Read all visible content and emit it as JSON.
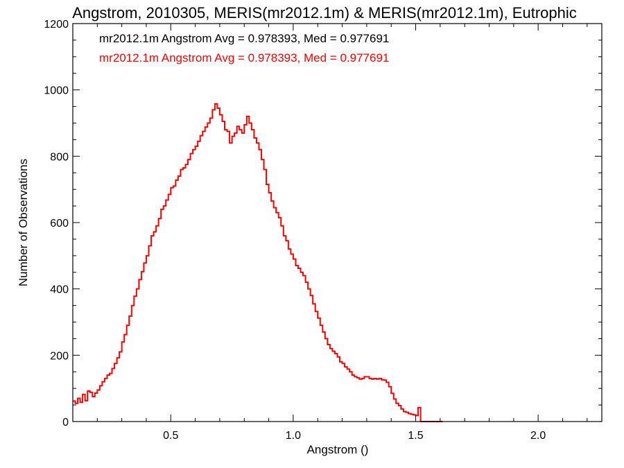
{
  "chart_data": {
    "type": "step",
    "title": "Angstrom, 2010305, MERIS(mr2012.1m) & MERIS(mr2012.1m), Eutrophic",
    "xlabel": "Angstrom ()",
    "ylabel": "Number of Observations",
    "xlim": [
      0.1,
      2.26
    ],
    "ylim": [
      0,
      1200
    ],
    "x_ticks": [
      {
        "value": 0.5,
        "label": "0.5"
      },
      {
        "value": 1.0,
        "label": "1.0"
      },
      {
        "value": 1.5,
        "label": "1.5"
      },
      {
        "value": 2.0,
        "label": "2.0"
      }
    ],
    "y_ticks": [
      {
        "value": 0,
        "label": "0"
      },
      {
        "value": 200,
        "label": "200"
      },
      {
        "value": 400,
        "label": "400"
      },
      {
        "value": 600,
        "label": "600"
      },
      {
        "value": 800,
        "label": "800"
      },
      {
        "value": 1000,
        "label": "1000"
      },
      {
        "value": 1200,
        "label": "1200"
      }
    ],
    "x_minor_step": 0.1,
    "y_minor_step": 50,
    "grid": false,
    "legend": {
      "placement": "top-left",
      "entries": [
        {
          "text": "mr2012.1m Angstrom Avg = 0.978393, Med = 0.977691",
          "color": "#000000"
        },
        {
          "text": "mr2012.1m Angstrom Avg = 0.978393, Med = 0.977691",
          "color": "#ff0000"
        }
      ]
    },
    "series": [
      {
        "color": "#ff0000",
        "bin_width": 0.01,
        "x_start": 0.1,
        "values": [
          62,
          55,
          70,
          58,
          82,
          63,
          92,
          88,
          75,
          86,
          95,
          108,
          120,
          130,
          140,
          145,
          160,
          175,
          192,
          210,
          240,
          262,
          290,
          318,
          350,
          378,
          400,
          428,
          452,
          478,
          500,
          530,
          560,
          572,
          590,
          612,
          640,
          650,
          668,
          685,
          705,
          710,
          728,
          740,
          760,
          765,
          775,
          790,
          808,
          820,
          830,
          845,
          862,
          875,
          888,
          900,
          915,
          940,
          958,
          945,
          925,
          905,
          880,
          875,
          840,
          860,
          870,
          890,
          880,
          870,
          895,
          920,
          900,
          880,
          855,
          840,
          820,
          790,
          760,
          715,
          690,
          665,
          645,
          630,
          615,
          590,
          560,
          545,
          520,
          505,
          490,
          470,
          462,
          450,
          440,
          420,
          400,
          380,
          355,
          332,
          312,
          290,
          270,
          250,
          232,
          220,
          212,
          205,
          195,
          180,
          175,
          165,
          158,
          150,
          140,
          135,
          132,
          128,
          130,
          135,
          135,
          130,
          128,
          130,
          128,
          130,
          126,
          125,
          118,
          105,
          85,
          68,
          55,
          48,
          38,
          30,
          28,
          24,
          22,
          20,
          18,
          42,
          0,
          0,
          0,
          0,
          0,
          0,
          0,
          0,
          0
        ]
      }
    ]
  }
}
